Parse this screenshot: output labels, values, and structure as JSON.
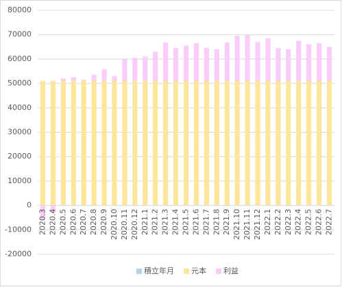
{
  "chart_data": {
    "type": "stacked_bar",
    "categories": [
      "2020.3",
      "2020.4",
      "2020.5",
      "2020.6",
      "2020.7",
      "2020.8",
      "2020.9",
      "2020.10",
      "2020.11",
      "2020.12",
      "2021.1",
      "2021.2",
      "2021.3",
      "2021.4",
      "2021.5",
      "2021.6",
      "2021.7",
      "2021.8",
      "2021.9",
      "2021.10",
      "2021.11",
      "2021.12",
      "2022.1",
      "2022.2",
      "2022.3",
      "2022.4",
      "2022.5",
      "2022.6",
      "2022.7"
    ],
    "series": [
      {
        "name": "積立年月",
        "color": "#b4d3e6",
        "values": [
          null,
          null,
          null,
          null,
          null,
          null,
          null,
          null,
          null,
          null,
          null,
          null,
          null,
          null,
          null,
          null,
          null,
          null,
          null,
          null,
          null,
          null,
          null,
          null,
          null,
          null,
          null,
          null,
          null
        ]
      },
      {
        "name": "元本",
        "color": "#fce69a",
        "values": [
          51000,
          51000,
          51000,
          51000,
          51000,
          51000,
          51000,
          51000,
          51000,
          51000,
          51000,
          51000,
          51000,
          51000,
          51000,
          51000,
          51000,
          51000,
          51000,
          51000,
          51000,
          51000,
          51000,
          51000,
          51000,
          51000,
          51000,
          51000,
          51000
        ]
      },
      {
        "name": "利益",
        "color": "#f9ccf9",
        "values": [
          -6000,
          -3000,
          1000,
          1500,
          500,
          2500,
          4800,
          2000,
          9000,
          9500,
          10000,
          12000,
          15800,
          13500,
          14500,
          15500,
          13500,
          13000,
          15800,
          18500,
          19000,
          16000,
          17500,
          13500,
          13000,
          16500,
          15000,
          15500,
          14000
        ]
      }
    ],
    "ylim": [
      -20000,
      80000
    ],
    "yticks": [
      -20000,
      -10000,
      0,
      10000,
      20000,
      30000,
      40000,
      50000,
      60000,
      70000,
      80000
    ],
    "grid": true,
    "legend": "bottom"
  }
}
